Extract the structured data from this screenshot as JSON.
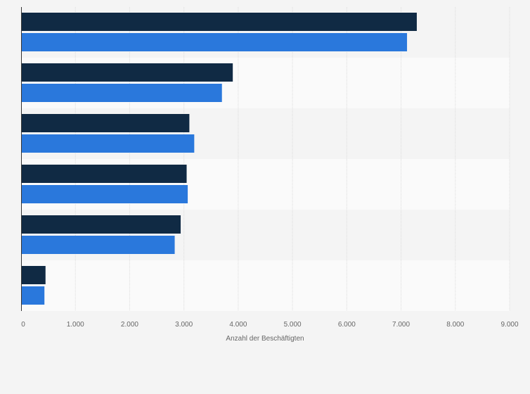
{
  "chart_data": {
    "type": "bar",
    "orientation": "horizontal",
    "title": "",
    "xlabel": "Anzahl der Beschäftigten",
    "ylabel": "",
    "xlim": [
      0,
      9000
    ],
    "xticks": [
      0,
      1000,
      2000,
      3000,
      4000,
      5000,
      6000,
      7000,
      8000,
      9000
    ],
    "xtick_labels": [
      "0",
      "1.000",
      "2.000",
      "3.000",
      "4.000",
      "5.000",
      "6.000",
      "7.000",
      "8.000",
      "9.000"
    ],
    "categories": [
      "",
      "",
      "",
      "",
      "",
      ""
    ],
    "series": [
      {
        "values": [
          7290,
          3900,
          3100,
          3050,
          2940,
          450
        ],
        "color": "#102a44"
      },
      {
        "values": [
          7110,
          3700,
          3190,
          3070,
          2830,
          430
        ],
        "color": "#2a78dc"
      }
    ],
    "grid": true,
    "legend": "none"
  },
  "colors": {
    "background": "#f4f4f4",
    "band_light": "#fafafa",
    "band_dark": "#f4f4f4",
    "gridline": "#dcdcdc",
    "axis": "#333333"
  }
}
